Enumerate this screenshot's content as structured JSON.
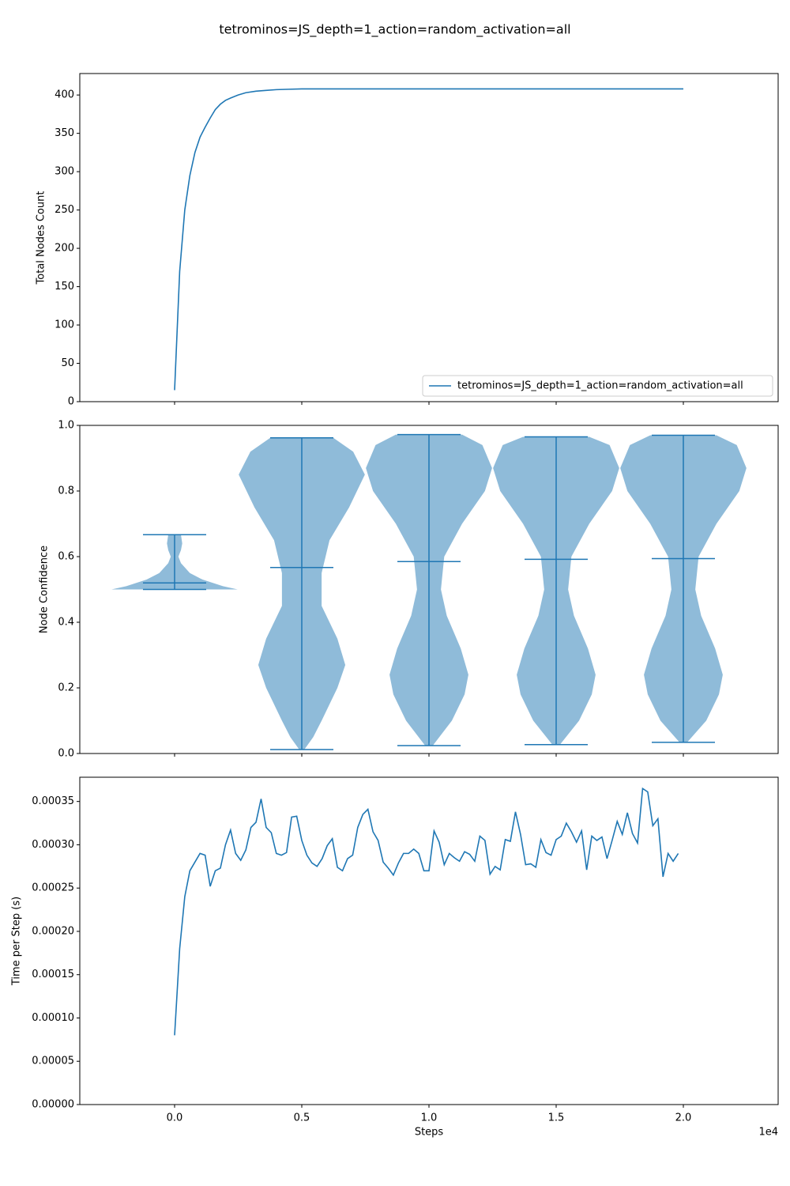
{
  "title": "tetrominos=JS_depth=1_action=random_activation=all",
  "chart_data": [
    {
      "type": "line",
      "ylabel": "Total Nodes Count",
      "x": [
        0,
        200,
        400,
        600,
        800,
        1000,
        1200,
        1400,
        1600,
        1800,
        2000,
        2200,
        2500,
        2800,
        3200,
        3600,
        4000,
        4500,
        5000,
        6000,
        8000,
        10000,
        15000,
        20000
      ],
      "series": [
        {
          "name": "tetrominos=JS_depth=1_action=random_activation=all",
          "color": "#1f77b4",
          "values": [
            15,
            170,
            250,
            295,
            325,
            345,
            358,
            370,
            381,
            388,
            393,
            396,
            400,
            403,
            405,
            406,
            407,
            407.5,
            408,
            408,
            408,
            408,
            408,
            408
          ]
        }
      ],
      "xlim": [
        -3727,
        23727
      ],
      "xticks": [
        0,
        5000,
        10000,
        15000,
        20000
      ],
      "ylim": [
        0,
        428
      ],
      "yticks": [
        0,
        50,
        100,
        150,
        200,
        250,
        300,
        350,
        400
      ],
      "legend": "lower right"
    },
    {
      "type": "violin",
      "ylabel": "Node Confidence",
      "color": "#1f77b4",
      "body_color": "#8fbbd9",
      "violins": [
        {
          "x": 0,
          "min": 0.5,
          "max": 0.667,
          "mean": 0.52,
          "density": {
            "y": [
              0.5,
              0.51,
              0.53,
              0.55,
              0.58,
              0.6,
              0.62,
              0.64,
              0.667
            ],
            "width": [
              2480,
              1900,
              1100,
              600,
              250,
              150,
              250,
              300,
              250
            ]
          }
        },
        {
          "x": 5000,
          "min": 0.012,
          "max": 0.962,
          "mean": 0.567,
          "density": {
            "y": [
              0.012,
              0.05,
              0.1,
              0.2,
              0.27,
              0.35,
              0.45,
              0.55,
              0.65,
              0.75,
              0.85,
              0.92,
              0.962
            ],
            "width": [
              100,
              450,
              780,
              1400,
              1710,
              1400,
              780,
              780,
              1090,
              1860,
              2480,
              2020,
              1240
            ]
          }
        },
        {
          "x": 10000,
          "min": 0.024,
          "max": 0.972,
          "mean": 0.585,
          "density": {
            "y": [
              0.024,
              0.1,
              0.18,
              0.24,
              0.32,
              0.42,
              0.5,
              0.6,
              0.7,
              0.8,
              0.87,
              0.94,
              0.972
            ],
            "width": [
              150,
              900,
              1400,
              1550,
              1250,
              700,
              470,
              600,
              1300,
              2200,
              2480,
              2100,
              1300
            ]
          }
        },
        {
          "x": 15000,
          "min": 0.027,
          "max": 0.965,
          "mean": 0.592,
          "density": {
            "y": [
              0.027,
              0.1,
              0.18,
              0.24,
              0.32,
              0.42,
              0.5,
              0.6,
              0.7,
              0.8,
              0.87,
              0.94,
              0.965
            ],
            "width": [
              150,
              900,
              1400,
              1550,
              1250,
              700,
              470,
              600,
              1300,
              2200,
              2480,
              2100,
              1300
            ]
          }
        },
        {
          "x": 20000,
          "min": 0.034,
          "max": 0.97,
          "mean": 0.594,
          "density": {
            "y": [
              0.034,
              0.1,
              0.18,
              0.24,
              0.32,
              0.42,
              0.5,
              0.6,
              0.7,
              0.8,
              0.87,
              0.94,
              0.97
            ],
            "width": [
              150,
              900,
              1400,
              1550,
              1250,
              700,
              470,
              600,
              1300,
              2200,
              2480,
              2100,
              1300
            ]
          }
        }
      ],
      "xlim": [
        -3727,
        23727
      ],
      "xticks": [
        0,
        5000,
        10000,
        15000,
        20000
      ],
      "ylim": [
        0,
        1
      ],
      "yticks": [
        {
          "value": 0,
          "label": "0.0"
        },
        0.2,
        0.4,
        0.6,
        0.8,
        {
          "value": 1,
          "label": "1.0"
        }
      ]
    },
    {
      "type": "line",
      "ylabel": "Time per Step (s)",
      "xlabel": "Steps",
      "x_offset_label": "1e4",
      "x": [
        0,
        200,
        400,
        600,
        800,
        1000,
        1200,
        1400,
        1600,
        1800,
        2000,
        2200,
        2400,
        2600,
        2800,
        3000,
        3200,
        3400,
        3600,
        3800,
        4000,
        4200,
        4400,
        4600,
        4800,
        5000,
        5200,
        5400,
        5600,
        5800,
        6000,
        6200,
        6400,
        6600,
        6800,
        7000,
        7200,
        7400,
        7600,
        7800,
        8000,
        8200,
        8400,
        8600,
        8800,
        9000,
        9200,
        9400,
        9600,
        9800,
        10000,
        10200,
        10400,
        10600,
        10800,
        11000,
        11200,
        11400,
        11600,
        11800,
        12000,
        12200,
        12400,
        12600,
        12800,
        13000,
        13200,
        13400,
        13600,
        13800,
        14000,
        14200,
        14400,
        14600,
        14800,
        15000,
        15200,
        15400,
        15600,
        15800,
        16000,
        16200,
        16400,
        16600,
        16800,
        17000,
        17200,
        17400,
        17600,
        17800,
        18000,
        18200,
        18400,
        18600,
        18800,
        19000,
        19200,
        19400,
        19600,
        19800
      ],
      "series": [
        {
          "color": "#1f77b4",
          "values": [
            8e-05,
            0.00018,
            0.00024,
            0.00027,
            0.00028,
            0.00029,
            0.000288,
            0.000252,
            0.00027,
            0.000273,
            0.0003,
            0.000317,
            0.00029,
            0.000282,
            0.000294,
            0.00032,
            0.000326,
            0.000353,
            0.00032,
            0.000314,
            0.00029,
            0.000288,
            0.000291,
            0.000332,
            0.000333,
            0.000305,
            0.000288,
            0.000279,
            0.000275,
            0.000284,
            0.000299,
            0.000307,
            0.000274,
            0.00027,
            0.000284,
            0.000288,
            0.00032,
            0.000335,
            0.000341,
            0.000315,
            0.000305,
            0.00028,
            0.000273,
            0.000265,
            0.000279,
            0.00029,
            0.00029,
            0.000295,
            0.00029,
            0.00027,
            0.00027,
            0.000316,
            0.000303,
            0.000277,
            0.00029,
            0.000285,
            0.000281,
            0.000292,
            0.000289,
            0.000281,
            0.00031,
            0.000305,
            0.000266,
            0.000275,
            0.000271,
            0.000306,
            0.000304,
            0.000338,
            0.000312,
            0.000277,
            0.000278,
            0.000274,
            0.000306,
            0.000291,
            0.000288,
            0.000306,
            0.00031,
            0.000325,
            0.000315,
            0.000303,
            0.000316,
            0.000271,
            0.00031,
            0.000305,
            0.000309,
            0.000284,
            0.000305,
            0.000327,
            0.000312,
            0.000337,
            0.000313,
            0.000302,
            0.000365,
            0.000361,
            0.000322,
            0.00033,
            0.000263,
            0.00029,
            0.000281,
            0.00029
          ]
        }
      ],
      "xlim": [
        -3727,
        23727
      ],
      "xticks": [
        {
          "value": 0,
          "label": "0.0"
        },
        {
          "value": 5000,
          "label": "0.5"
        },
        {
          "value": 10000,
          "label": "1.0"
        },
        {
          "value": 15000,
          "label": "1.5"
        },
        {
          "value": 20000,
          "label": "2.0"
        }
      ],
      "ylim": [
        0,
        0.000378
      ],
      "yticks": [
        {
          "value": 0,
          "label": "0.00000"
        },
        {
          "value": 5e-05,
          "label": "0.00005"
        },
        {
          "value": 0.0001,
          "label": "0.00010"
        },
        {
          "value": 0.00015,
          "label": "0.00015"
        },
        {
          "value": 0.0002,
          "label": "0.00020"
        },
        {
          "value": 0.00025,
          "label": "0.00025"
        },
        {
          "value": 0.0003,
          "label": "0.00030"
        },
        {
          "value": 0.00035,
          "label": "0.00035"
        }
      ]
    }
  ]
}
